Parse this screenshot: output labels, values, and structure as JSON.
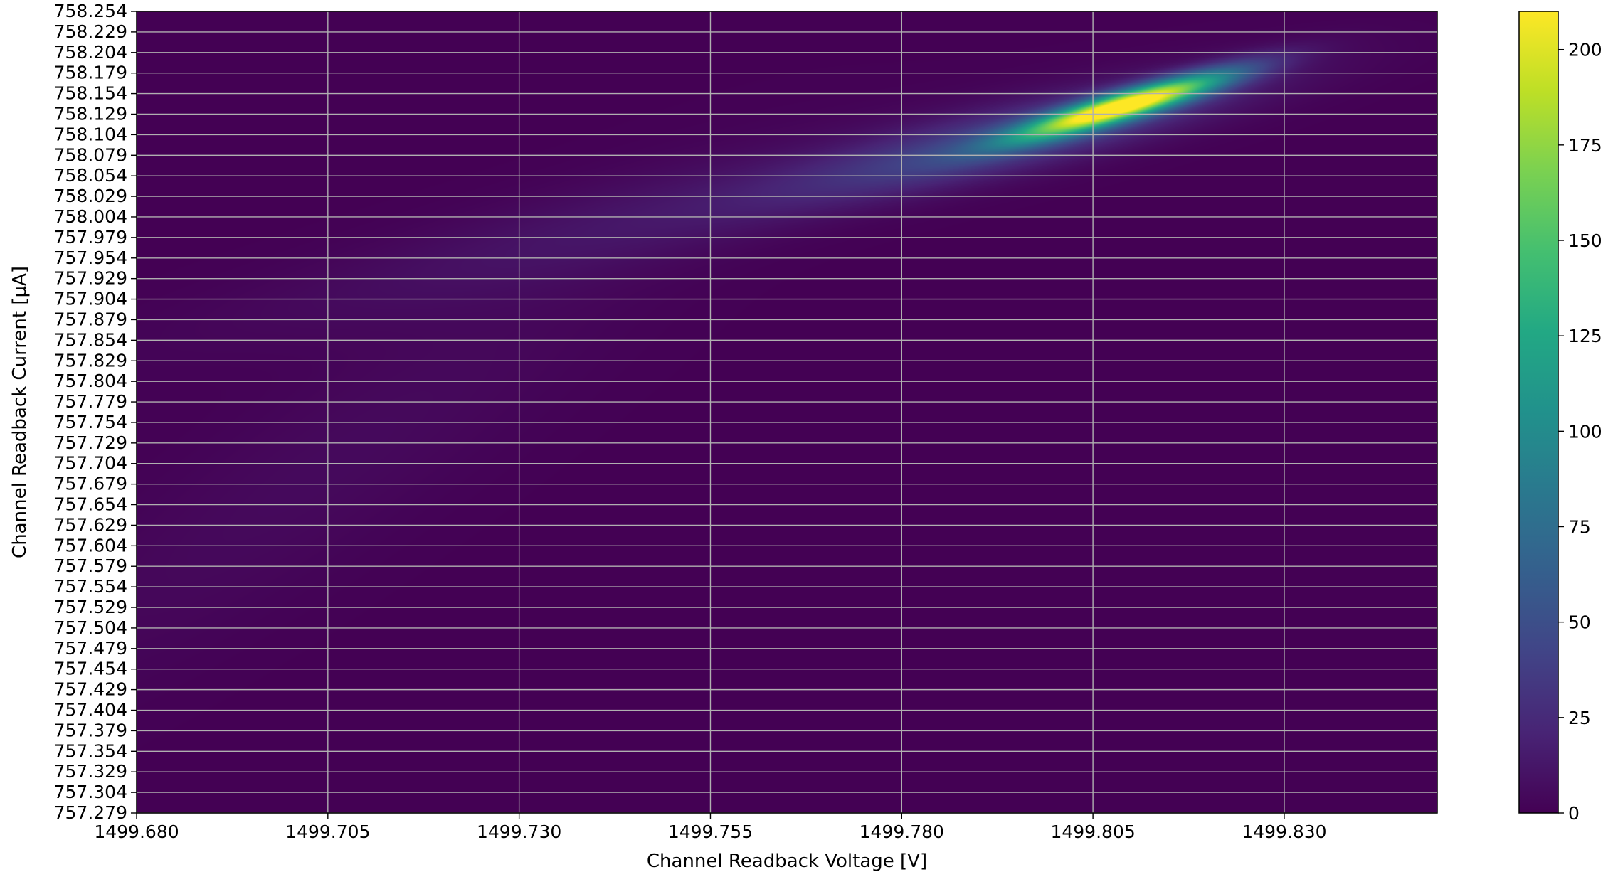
{
  "chart_data": {
    "type": "heatmap",
    "title": "",
    "xlabel": "Channel Readback Voltage [V]",
    "ylabel": "Channel Readback Current [μA]",
    "xlim": [
      1499.68,
      1499.85
    ],
    "ylim": [
      757.279,
      758.254
    ],
    "x_ticks": [
      "1499.680",
      "1499.705",
      "1499.730",
      "1499.755",
      "1499.780",
      "1499.805",
      "1499.830"
    ],
    "y_ticks": [
      "757.279",
      "757.304",
      "757.329",
      "757.354",
      "757.379",
      "757.404",
      "757.429",
      "757.454",
      "757.479",
      "757.504",
      "757.529",
      "757.554",
      "757.579",
      "757.604",
      "757.629",
      "757.654",
      "757.679",
      "757.704",
      "757.729",
      "757.754",
      "757.779",
      "757.804",
      "757.829",
      "757.854",
      "757.879",
      "757.904",
      "757.929",
      "757.954",
      "757.979",
      "758.004",
      "758.029",
      "758.054",
      "758.079",
      "758.104",
      "758.129",
      "758.154",
      "758.179",
      "758.204",
      "758.229",
      "758.254"
    ],
    "colorbar": {
      "colormap": "viridis",
      "range": [
        0,
        210
      ],
      "ticks": [
        "0",
        "25",
        "50",
        "75",
        "100",
        "125",
        "150",
        "175",
        "200"
      ]
    },
    "grid": true,
    "density_peak": {
      "x": 1499.809,
      "y": 758.139,
      "value": 210
    },
    "density_components": [
      {
        "x": 1499.809,
        "y": 758.139,
        "amplitude": 210,
        "sx": 0.0095,
        "sy": 0.028,
        "rho": 0.9
      },
      {
        "x": 1499.795,
        "y": 758.1,
        "amplitude": 45,
        "sx": 0.02,
        "sy": 0.05,
        "rho": 0.85
      },
      {
        "x": 1499.745,
        "y": 758.0,
        "amplitude": 10,
        "sx": 0.035,
        "sy": 0.09,
        "rho": 0.9
      },
      {
        "x": 1499.705,
        "y": 757.7,
        "amplitude": 5,
        "sx": 0.03,
        "sy": 0.2,
        "rho": 0.9
      }
    ]
  }
}
